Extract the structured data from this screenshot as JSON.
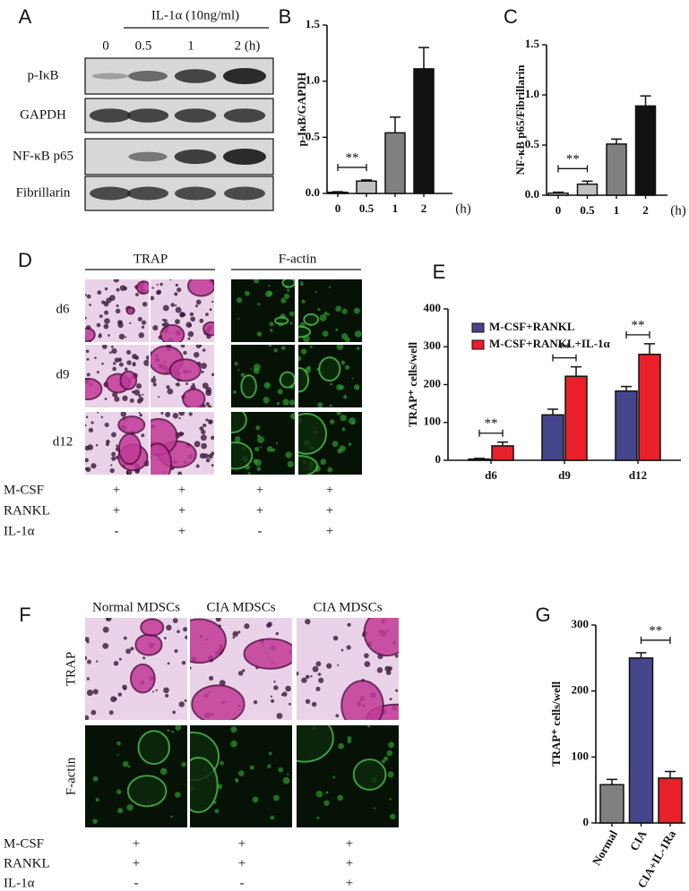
{
  "panel_labels": [
    "A",
    "B",
    "C",
    "D",
    "E",
    "F",
    "G"
  ],
  "blot": {
    "treatment": "IL-1α (10ng/ml)",
    "lanes": [
      "0",
      "0.5",
      "1",
      "2 (h)"
    ],
    "rows": [
      "p-IκB",
      "GAPDH",
      "NF-κB p65",
      "Fibrillarin"
    ]
  },
  "stain_d": {
    "columns": [
      "TRAP",
      "F-actin"
    ],
    "rows": [
      "d6",
      "d9",
      "d12"
    ],
    "conditions": [
      {
        "name": "M-CSF",
        "marks": [
          "+",
          "+",
          "+",
          "+"
        ]
      },
      {
        "name": "RANKL",
        "marks": [
          "+",
          "+",
          "+",
          "+"
        ]
      },
      {
        "name": "IL-1α",
        "marks": [
          "-",
          "+",
          "-",
          "+"
        ]
      }
    ]
  },
  "stain_f": {
    "columns": [
      "Normal MDSCs",
      "CIA MDSCs",
      "CIA MDSCs"
    ],
    "rows": [
      "TRAP",
      "F-actin"
    ],
    "conditions": [
      {
        "name": "M-CSF",
        "marks": [
          "+",
          "+",
          "+"
        ]
      },
      {
        "name": "RANKL",
        "marks": [
          "+",
          "+",
          "+"
        ]
      },
      {
        "name": "IL-1α",
        "marks": [
          "-",
          "-",
          "+"
        ]
      }
    ]
  },
  "chart_data": [
    {
      "type": "bar",
      "ylabel": "p-IκB/GAPDH",
      "categories": [
        "0",
        "0.5",
        "1",
        "2"
      ],
      "xunit": "(h)",
      "colors": [
        "#ffffff",
        "#c0c0c0",
        "#808080",
        "#111111"
      ],
      "series": [
        {
          "values": [
            0.01,
            0.11,
            0.54,
            1.11
          ],
          "errors": [
            0.005,
            0.01,
            0.14,
            0.19
          ]
        }
      ],
      "ylim": [
        0,
        1.5
      ],
      "yticks": [
        {
          "value": 0,
          "label": "0.0"
        },
        0.5,
        {
          "value": 1,
          "label": "1.0"
        },
        1.5
      ],
      "annotations": [
        {
          "text": "**",
          "between": [
            0,
            1
          ]
        }
      ]
    },
    {
      "type": "bar",
      "ylabel": "NF-κB p65/Fibrillarin",
      "categories": [
        "0",
        "0.5",
        "1",
        "2"
      ],
      "xunit": "(h)",
      "colors": [
        "#ffffff",
        "#c0c0c0",
        "#808080",
        "#111111"
      ],
      "series": [
        {
          "values": [
            0.02,
            0.11,
            0.51,
            0.89
          ],
          "errors": [
            0.01,
            0.03,
            0.05,
            0.1
          ]
        }
      ],
      "ylim": [
        0,
        1.5
      ],
      "yticks": [
        {
          "value": 0,
          "label": "0.0"
        },
        0.5,
        {
          "value": 1,
          "label": "1.0"
        },
        1.5
      ],
      "annotations": [
        {
          "text": "**",
          "between": [
            0,
            1
          ]
        }
      ]
    },
    {
      "type": "grouped_bar",
      "ylabel": "TRAP⁺ cells/well",
      "categories": [
        "d6",
        "d9",
        "d12"
      ],
      "series": [
        {
          "name": "M-CSF+RANKL",
          "color": "#45458c",
          "values": [
            3,
            120,
            183
          ],
          "errors": [
            2,
            15,
            12
          ]
        },
        {
          "name": "M-CSF+RANKL+IL-1α",
          "color": "#e8202a",
          "values": [
            38,
            222,
            280
          ],
          "errors": [
            10,
            25,
            28
          ]
        }
      ],
      "ylim": [
        0,
        400
      ],
      "yticks": [
        0,
        100,
        200,
        300,
        400
      ],
      "legend": "upper left",
      "annotations": [
        {
          "text": "**",
          "category": 0
        },
        {
          "text": "**",
          "category": 1
        },
        {
          "text": "**",
          "category": 2
        }
      ]
    },
    {
      "type": "bar",
      "ylabel": "TRAP⁺ cells/well",
      "categories": [
        "Normal",
        "CIA",
        "CIA+IL-1Ra"
      ],
      "colors": [
        "#808080",
        "#45458c",
        "#e8202a"
      ],
      "series": [
        {
          "values": [
            58,
            250,
            68
          ],
          "errors": [
            8,
            8,
            10
          ]
        }
      ],
      "ylim": [
        0,
        300
      ],
      "yticks": [
        0,
        100,
        200,
        300
      ],
      "rotate_labels": true,
      "annotations": [
        {
          "text": "**",
          "between": [
            1,
            2
          ]
        }
      ]
    }
  ]
}
